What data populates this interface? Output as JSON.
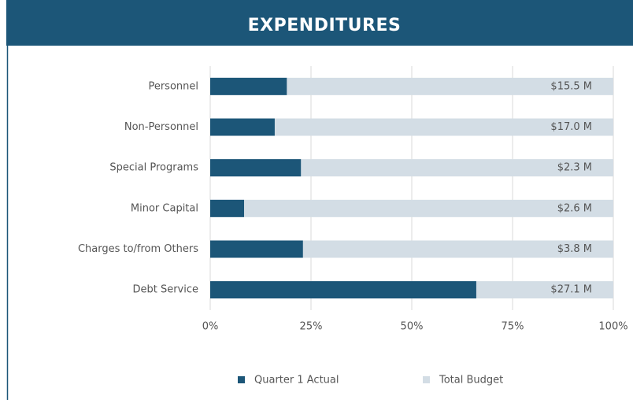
{
  "chart_data": {
    "type": "bar",
    "orientation": "horizontal",
    "stacked": false,
    "title": "EXPENDITURES",
    "categories": [
      "Personnel",
      "Non-Personnel",
      "Special Programs",
      "Minor Capital",
      "Charges to/from Others",
      "Debt Service"
    ],
    "series": [
      {
        "name": "Total Budget",
        "color": "#d3dde5",
        "values": [
          100,
          100,
          100,
          100,
          100,
          100
        ]
      },
      {
        "name": "Quarter 1 Actual",
        "color": "#1c5678",
        "values": [
          19,
          16,
          22.5,
          8.4,
          23,
          66
        ]
      }
    ],
    "annotations": [
      "$15.5 M",
      "$17.0 M",
      "$2.3 M",
      "$2.6 M",
      "$3.8 M",
      "$27.1 M"
    ],
    "xlim": [
      0,
      100
    ],
    "xticks": [
      {
        "value": 0,
        "label": "0%"
      },
      {
        "value": 25,
        "label": "25%"
      },
      {
        "value": 50,
        "label": "50%"
      },
      {
        "value": 75,
        "label": "75%"
      },
      {
        "value": 100,
        "label": "100%"
      }
    ],
    "grid": true,
    "legend": "bottom"
  }
}
